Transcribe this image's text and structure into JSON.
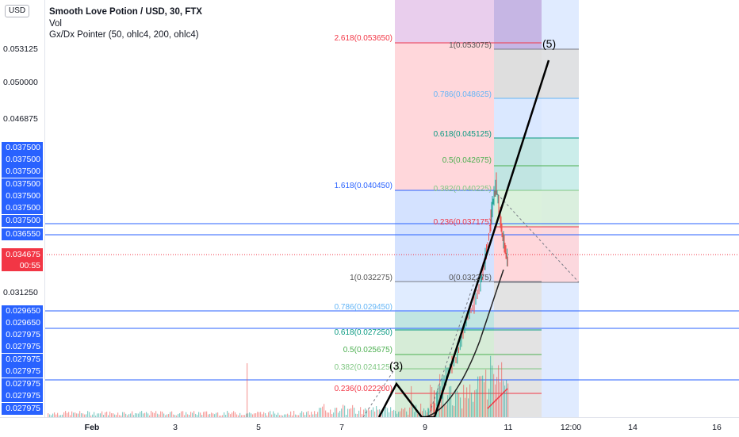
{
  "legend": {
    "title": "Smooth Love Potion / USD, 30, FTX",
    "vol": "Vol",
    "indicator": "Gx/Dx Pointer (50, ohlc4, 200, ohlc4)"
  },
  "currency_tag": "USD",
  "price_ticks": [
    "0.053125",
    "0.050000",
    "0.046875",
    "0.031250"
  ],
  "blue_tags_top": [
    "0.037500",
    "0.037500",
    "0.037500",
    "0.037500",
    "0.037500",
    "0.037500",
    "0.037500"
  ],
  "tag_036550": "0.036550",
  "price_tag": {
    "value": "0.034675",
    "countdown": "00:55"
  },
  "blue_tags_bottom": [
    "0.029650",
    "0.029650",
    "0.027975",
    "0.027975",
    "0.027975",
    "0.027975",
    "0.027975",
    "0.027975",
    "0.027975"
  ],
  "time_axis": [
    "Feb",
    "3",
    "5",
    "7",
    "9",
    "11",
    "12:00",
    "14",
    "16"
  ],
  "fib_left": {
    "l2618": "2.618(0.053650)",
    "l1618": "1.618(0.040450)",
    "l1": "1(0.032275)",
    "l0786": "0.786(0.029450)",
    "l0618": "0.618(0.027250)",
    "l05": "0.5(0.025675)",
    "l0382": "0.382(0.024125)",
    "l0236": "0.236(0.022200)"
  },
  "fib_right": {
    "r1": "1(0.053075)",
    "r0786": "0.786(0.048625)",
    "r0618": "0.618(0.045125)",
    "r05": "0.5(0.042675)",
    "r0382": "0.382(0.040225)",
    "r0236": "0.236(0.037175)",
    "r0": "0(0.032275)"
  },
  "wave_labels": {
    "w3": "(3)",
    "w5": "(5)"
  },
  "colors": {
    "blue_tag": "#2962ff",
    "red_tag": "#f23645",
    "trend": "#000000"
  }
}
